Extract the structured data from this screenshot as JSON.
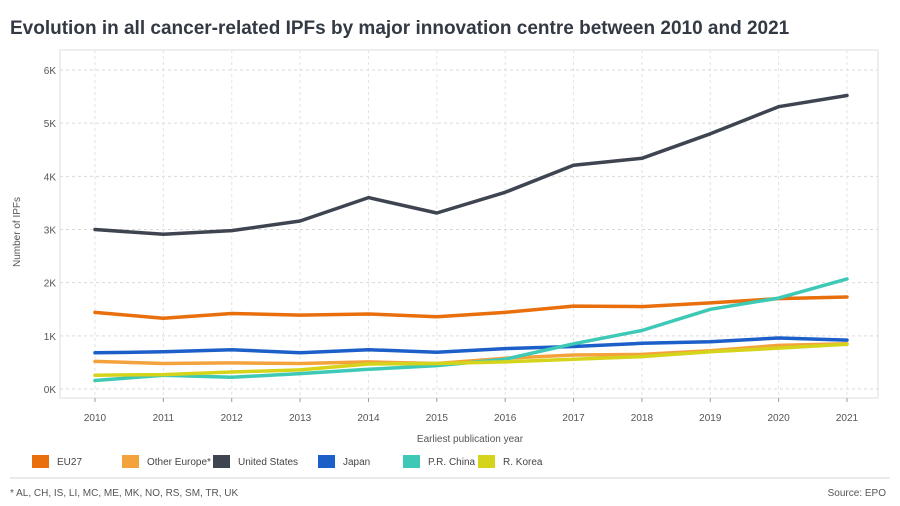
{
  "chart_data": {
    "type": "line",
    "title": "Evolution in all cancer-related IPFs by major innovation centre between 2010 and 2021",
    "xlabel": "Earliest publication year",
    "ylabel": "Number of IPFs",
    "x": [
      2010,
      2011,
      2012,
      2013,
      2014,
      2015,
      2016,
      2017,
      2018,
      2019,
      2020,
      2021
    ],
    "ylim": [
      0,
      6300
    ],
    "yticks": [
      0,
      1000,
      2000,
      3000,
      4000,
      5000,
      6000
    ],
    "ytick_labels": [
      "0K",
      "1K",
      "2K",
      "3K",
      "4K",
      "5K",
      "6K"
    ],
    "grid": "horizontal dashed",
    "legend": "bottom",
    "series": [
      {
        "name": "EU27",
        "color": "#e86f0c",
        "values": [
          1440,
          1330,
          1420,
          1390,
          1410,
          1360,
          1440,
          1560,
          1550,
          1620,
          1700,
          1730
        ]
      },
      {
        "name": "Other Europe*",
        "color": "#f4a23c",
        "values": [
          520,
          480,
          490,
          480,
          510,
          480,
          580,
          640,
          650,
          720,
          820,
          850
        ]
      },
      {
        "name": "United States",
        "color": "#3f4550",
        "values": [
          3000,
          2910,
          2980,
          3160,
          3600,
          3310,
          3700,
          4210,
          4340,
          4800,
          5310,
          5520
        ]
      },
      {
        "name": "Japan",
        "color": "#1c5fc9",
        "values": [
          680,
          700,
          740,
          680,
          740,
          690,
          760,
          800,
          860,
          890,
          960,
          920
        ]
      },
      {
        "name": "P.R. China",
        "color": "#3ec9b7",
        "values": [
          160,
          260,
          220,
          290,
          370,
          440,
          560,
          850,
          1100,
          1500,
          1710,
          2070
        ]
      },
      {
        "name": "R. Korea",
        "color": "#d6d41a",
        "values": [
          260,
          270,
          320,
          360,
          470,
          480,
          510,
          560,
          610,
          700,
          770,
          840
        ]
      }
    ]
  },
  "footnote": "* AL, CH, IS, LI, MC, ME, MK, NO, RS, SM, TR, UK",
  "source": "Source: EPO"
}
